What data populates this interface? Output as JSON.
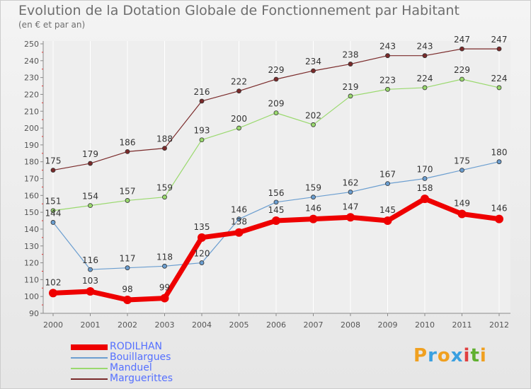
{
  "title": "Evolution de la Dotation Globale de Fonctionnement par Habitant",
  "subtitle": "(en € et par an)",
  "logo": {
    "text": "Proxiti",
    "letters": [
      {
        "ch": "P",
        "color": "#f0a020"
      },
      {
        "ch": "r",
        "color": "#3aa0e0"
      },
      {
        "ch": "o",
        "color": "#f0a020"
      },
      {
        "ch": "x",
        "color": "#3aa0e0"
      },
      {
        "ch": "i",
        "color": "#e04040"
      },
      {
        "ch": "t",
        "color": "#60b030"
      },
      {
        "ch": "i",
        "color": "#f0a020"
      }
    ]
  },
  "chart_data": {
    "type": "line",
    "title": "Evolution de la Dotation Globale de Fonctionnement par Habitant",
    "subtitle": "(en € et par an)",
    "xlabel": "",
    "ylabel": "",
    "ylim": [
      90,
      250
    ],
    "ytick_step": 10,
    "grid": "vertical",
    "legend_position": "bottom-left",
    "categories": [
      "2000",
      "2001",
      "2002",
      "2003",
      "2004",
      "2005",
      "2006",
      "2007",
      "2008",
      "2009",
      "2010",
      "2011",
      "2012"
    ],
    "series": [
      {
        "name": "Marguerittes",
        "color": "#7a2a2a",
        "width": 1.2,
        "values": [
          175,
          179,
          186,
          188,
          216,
          222,
          229,
          234,
          238,
          243,
          243,
          247,
          247
        ]
      },
      {
        "name": "Manduel",
        "color": "#9ad96e",
        "width": 1.2,
        "values": [
          151,
          154,
          157,
          159,
          193,
          200,
          209,
          202,
          219,
          223,
          224,
          229,
          224
        ]
      },
      {
        "name": "Bouillargues",
        "color": "#6b9ed0",
        "width": 1.2,
        "values": [
          144,
          116,
          117,
          118,
          120,
          146,
          156,
          159,
          162,
          167,
          170,
          175,
          180
        ]
      },
      {
        "name": "RODILHAN",
        "color": "#ee0000",
        "width": 7,
        "values": [
          102,
          103,
          98,
          99,
          135,
          138,
          145,
          146,
          147,
          145,
          158,
          149,
          146
        ]
      }
    ]
  }
}
